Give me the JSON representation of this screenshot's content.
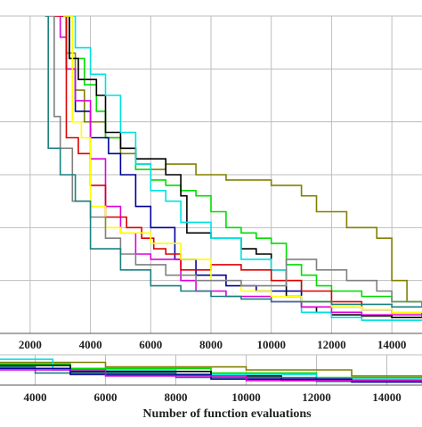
{
  "chart_data": [
    {
      "type": "line",
      "xlabel": "",
      "ylabel": "",
      "title": "",
      "xlim": [
        1000,
        15000
      ],
      "ylim": [
        0,
        6
      ],
      "grid": true,
      "x_ticks": [
        2000,
        4000,
        6000,
        8000,
        10000,
        12000,
        14000
      ],
      "x_tick_labels": [
        "2000",
        "4000",
        "6000",
        "8000",
        "10000",
        "12000",
        "14000"
      ],
      "series": [
        {
          "color": "#808000",
          "x": [
            3100,
            3200,
            3500,
            3800,
            4500,
            5000,
            5500,
            6000,
            6500,
            7500,
            8500,
            9000,
            10000,
            11000,
            11500,
            12500,
            13500,
            14000,
            14500,
            15000
          ],
          "y": [
            6.0,
            5.3,
            4.6,
            4.0,
            3.7,
            3.4,
            3.2,
            3.1,
            3.2,
            3.0,
            2.9,
            2.9,
            2.8,
            2.6,
            2.3,
            2.0,
            1.8,
            1.0,
            0.6,
            0.5
          ]
        },
        {
          "color": "#00dd00",
          "x": [
            3000,
            3300,
            3800,
            4200,
            4500,
            5000,
            5500,
            6000,
            6500,
            7000,
            7500,
            8000,
            8500,
            9000,
            9500,
            10000,
            10500,
            11000,
            11500,
            12000,
            13000,
            14000,
            15000
          ],
          "y": [
            6.0,
            5.2,
            4.7,
            4.2,
            3.7,
            3.5,
            3.1,
            2.9,
            2.8,
            2.7,
            2.6,
            2.3,
            2.0,
            1.9,
            1.8,
            1.7,
            1.3,
            1.1,
            0.9,
            0.8,
            0.7,
            0.6,
            0.5
          ]
        },
        {
          "color": "#000000",
          "x": [
            3100,
            3300,
            3600,
            4200,
            4500,
            5000,
            5500,
            6500,
            7000,
            7200,
            8000,
            9000,
            9500,
            10000,
            10500,
            11000,
            11500,
            12000,
            13000,
            14000,
            15000
          ],
          "y": [
            6.0,
            5.2,
            4.8,
            4.5,
            3.8,
            3.5,
            3.3,
            3.0,
            2.6,
            1.9,
            1.8,
            1.6,
            1.5,
            1.2,
            0.7,
            0.5,
            0.4,
            0.35,
            0.33,
            0.3,
            0.3
          ]
        },
        {
          "color": "#00e0e0",
          "x": [
            3300,
            3500,
            4000,
            4500,
            5000,
            5500,
            6000,
            6500,
            7000,
            8000,
            9000,
            10000,
            10500,
            11000,
            12000,
            13000,
            14000,
            15000
          ],
          "y": [
            6.0,
            5.4,
            4.9,
            4.5,
            3.8,
            3.2,
            2.7,
            2.5,
            2.1,
            1.8,
            1.4,
            1.2,
            1.0,
            0.4,
            0.3,
            0.25,
            0.25,
            0.25
          ]
        },
        {
          "color": "#000099",
          "x": [
            3000,
            3200,
            3500,
            4000,
            4600,
            5000,
            5500,
            6000,
            6800,
            7500,
            8500,
            9500,
            11000,
            12000,
            13000,
            14000,
            15000
          ],
          "y": [
            6.0,
            5.0,
            4.2,
            3.7,
            3.4,
            3.0,
            2.4,
            2.0,
            1.4,
            1.1,
            0.9,
            0.8,
            0.6,
            0.5,
            0.45,
            0.4,
            0.4
          ]
        },
        {
          "color": "#dd00dd",
          "x": [
            2800,
            3000,
            3200,
            3500,
            4000,
            4500,
            5000,
            5500,
            6000,
            7000,
            7500,
            8500,
            10000,
            11000,
            12000,
            13000,
            14000,
            15000
          ],
          "y": [
            6.0,
            5.6,
            5.0,
            4.4,
            3.3,
            2.4,
            1.9,
            1.5,
            1.4,
            1.0,
            0.8,
            0.7,
            0.6,
            0.5,
            0.4,
            0.35,
            0.35,
            0.3
          ]
        },
        {
          "color": "#dd0000",
          "x": [
            2800,
            3200,
            3600,
            4000,
            4500,
            5200,
            5700,
            6100,
            6500,
            7000,
            8000,
            9000,
            10000,
            11000,
            12000,
            13000,
            14000,
            15000
          ],
          "y": [
            6.0,
            3.7,
            3.4,
            2.8,
            2.2,
            2.0,
            1.8,
            1.6,
            1.5,
            1.2,
            1.3,
            1.2,
            1.0,
            0.8,
            0.6,
            0.45,
            0.4,
            0.35
          ]
        },
        {
          "color": "#ffff00",
          "x": [
            3100,
            3400,
            3700,
            4000,
            4500,
            5000,
            6000,
            7000,
            8000,
            8600,
            9000,
            10000,
            11000,
            12000,
            13000,
            14000,
            15000
          ],
          "y": [
            6.0,
            4.0,
            3.7,
            2.4,
            2.0,
            1.9,
            1.7,
            1.4,
            1.0,
            1.0,
            0.8,
            0.7,
            0.6,
            0.5,
            0.45,
            0.4,
            0.4
          ]
        },
        {
          "color": "#808080",
          "x": [
            2500,
            2800,
            3000,
            3400,
            4000,
            4500,
            5000,
            5500,
            6500,
            7500,
            9000,
            10500,
            11500,
            12500,
            13500,
            14000,
            15000
          ],
          "y": [
            6.0,
            4.1,
            3.5,
            2.5,
            2.2,
            1.8,
            1.5,
            1.3,
            1.1,
            1.0,
            0.9,
            1.4,
            1.2,
            1.0,
            0.8,
            0.6,
            0.55
          ]
        },
        {
          "color": "#1a8080",
          "x": [
            2500,
            2600,
            3000,
            3500,
            4000,
            5000,
            6000,
            7000,
            8000,
            9000,
            10000,
            12000,
            14000,
            15000
          ],
          "y": [
            6.0,
            3.5,
            3.0,
            2.5,
            1.6,
            1.2,
            0.9,
            0.8,
            0.7,
            0.65,
            0.6,
            0.55,
            0.5,
            0.5
          ]
        }
      ]
    },
    {
      "type": "line",
      "xlabel": "Number of function evaluations",
      "ylabel": "",
      "title": "",
      "xlim": [
        3000,
        15000
      ],
      "ylim": [
        0,
        1
      ],
      "grid": true,
      "x_ticks": [
        4000,
        6000,
        8000,
        10000,
        12000,
        14000
      ],
      "x_tick_labels": [
        "4000",
        "6000",
        "8000",
        "10000",
        "12000",
        "14000"
      ],
      "series": [
        {
          "color": "#808000",
          "x": [
            3000,
            6000,
            10000,
            13000,
            15000
          ],
          "y": [
            0.75,
            0.6,
            0.5,
            0.3,
            0.15
          ]
        },
        {
          "color": "#00dd00",
          "x": [
            3000,
            5000,
            9000,
            12000,
            15000
          ],
          "y": [
            0.7,
            0.55,
            0.4,
            0.25,
            0.12
          ]
        },
        {
          "color": "#00e0e0",
          "x": [
            3000,
            4500,
            8000,
            12000,
            15000
          ],
          "y": [
            0.85,
            0.5,
            0.35,
            0.2,
            0.1
          ]
        },
        {
          "color": "#000000",
          "x": [
            3000,
            5000,
            9000,
            11000,
            15000
          ],
          "y": [
            0.65,
            0.45,
            0.3,
            0.15,
            0.1
          ]
        },
        {
          "color": "#1a8080",
          "x": [
            3000,
            4000,
            8000,
            12000,
            15000
          ],
          "y": [
            0.6,
            0.4,
            0.25,
            0.12,
            0.08
          ]
        },
        {
          "color": "#000099",
          "x": [
            3000,
            5000,
            9000,
            13000,
            15000
          ],
          "y": [
            0.55,
            0.35,
            0.2,
            0.1,
            0.06
          ]
        },
        {
          "color": "#dd00dd",
          "x": [
            3000,
            6000,
            10000,
            15000
          ],
          "y": [
            0.5,
            0.3,
            0.15,
            0.05
          ]
        }
      ]
    }
  ]
}
